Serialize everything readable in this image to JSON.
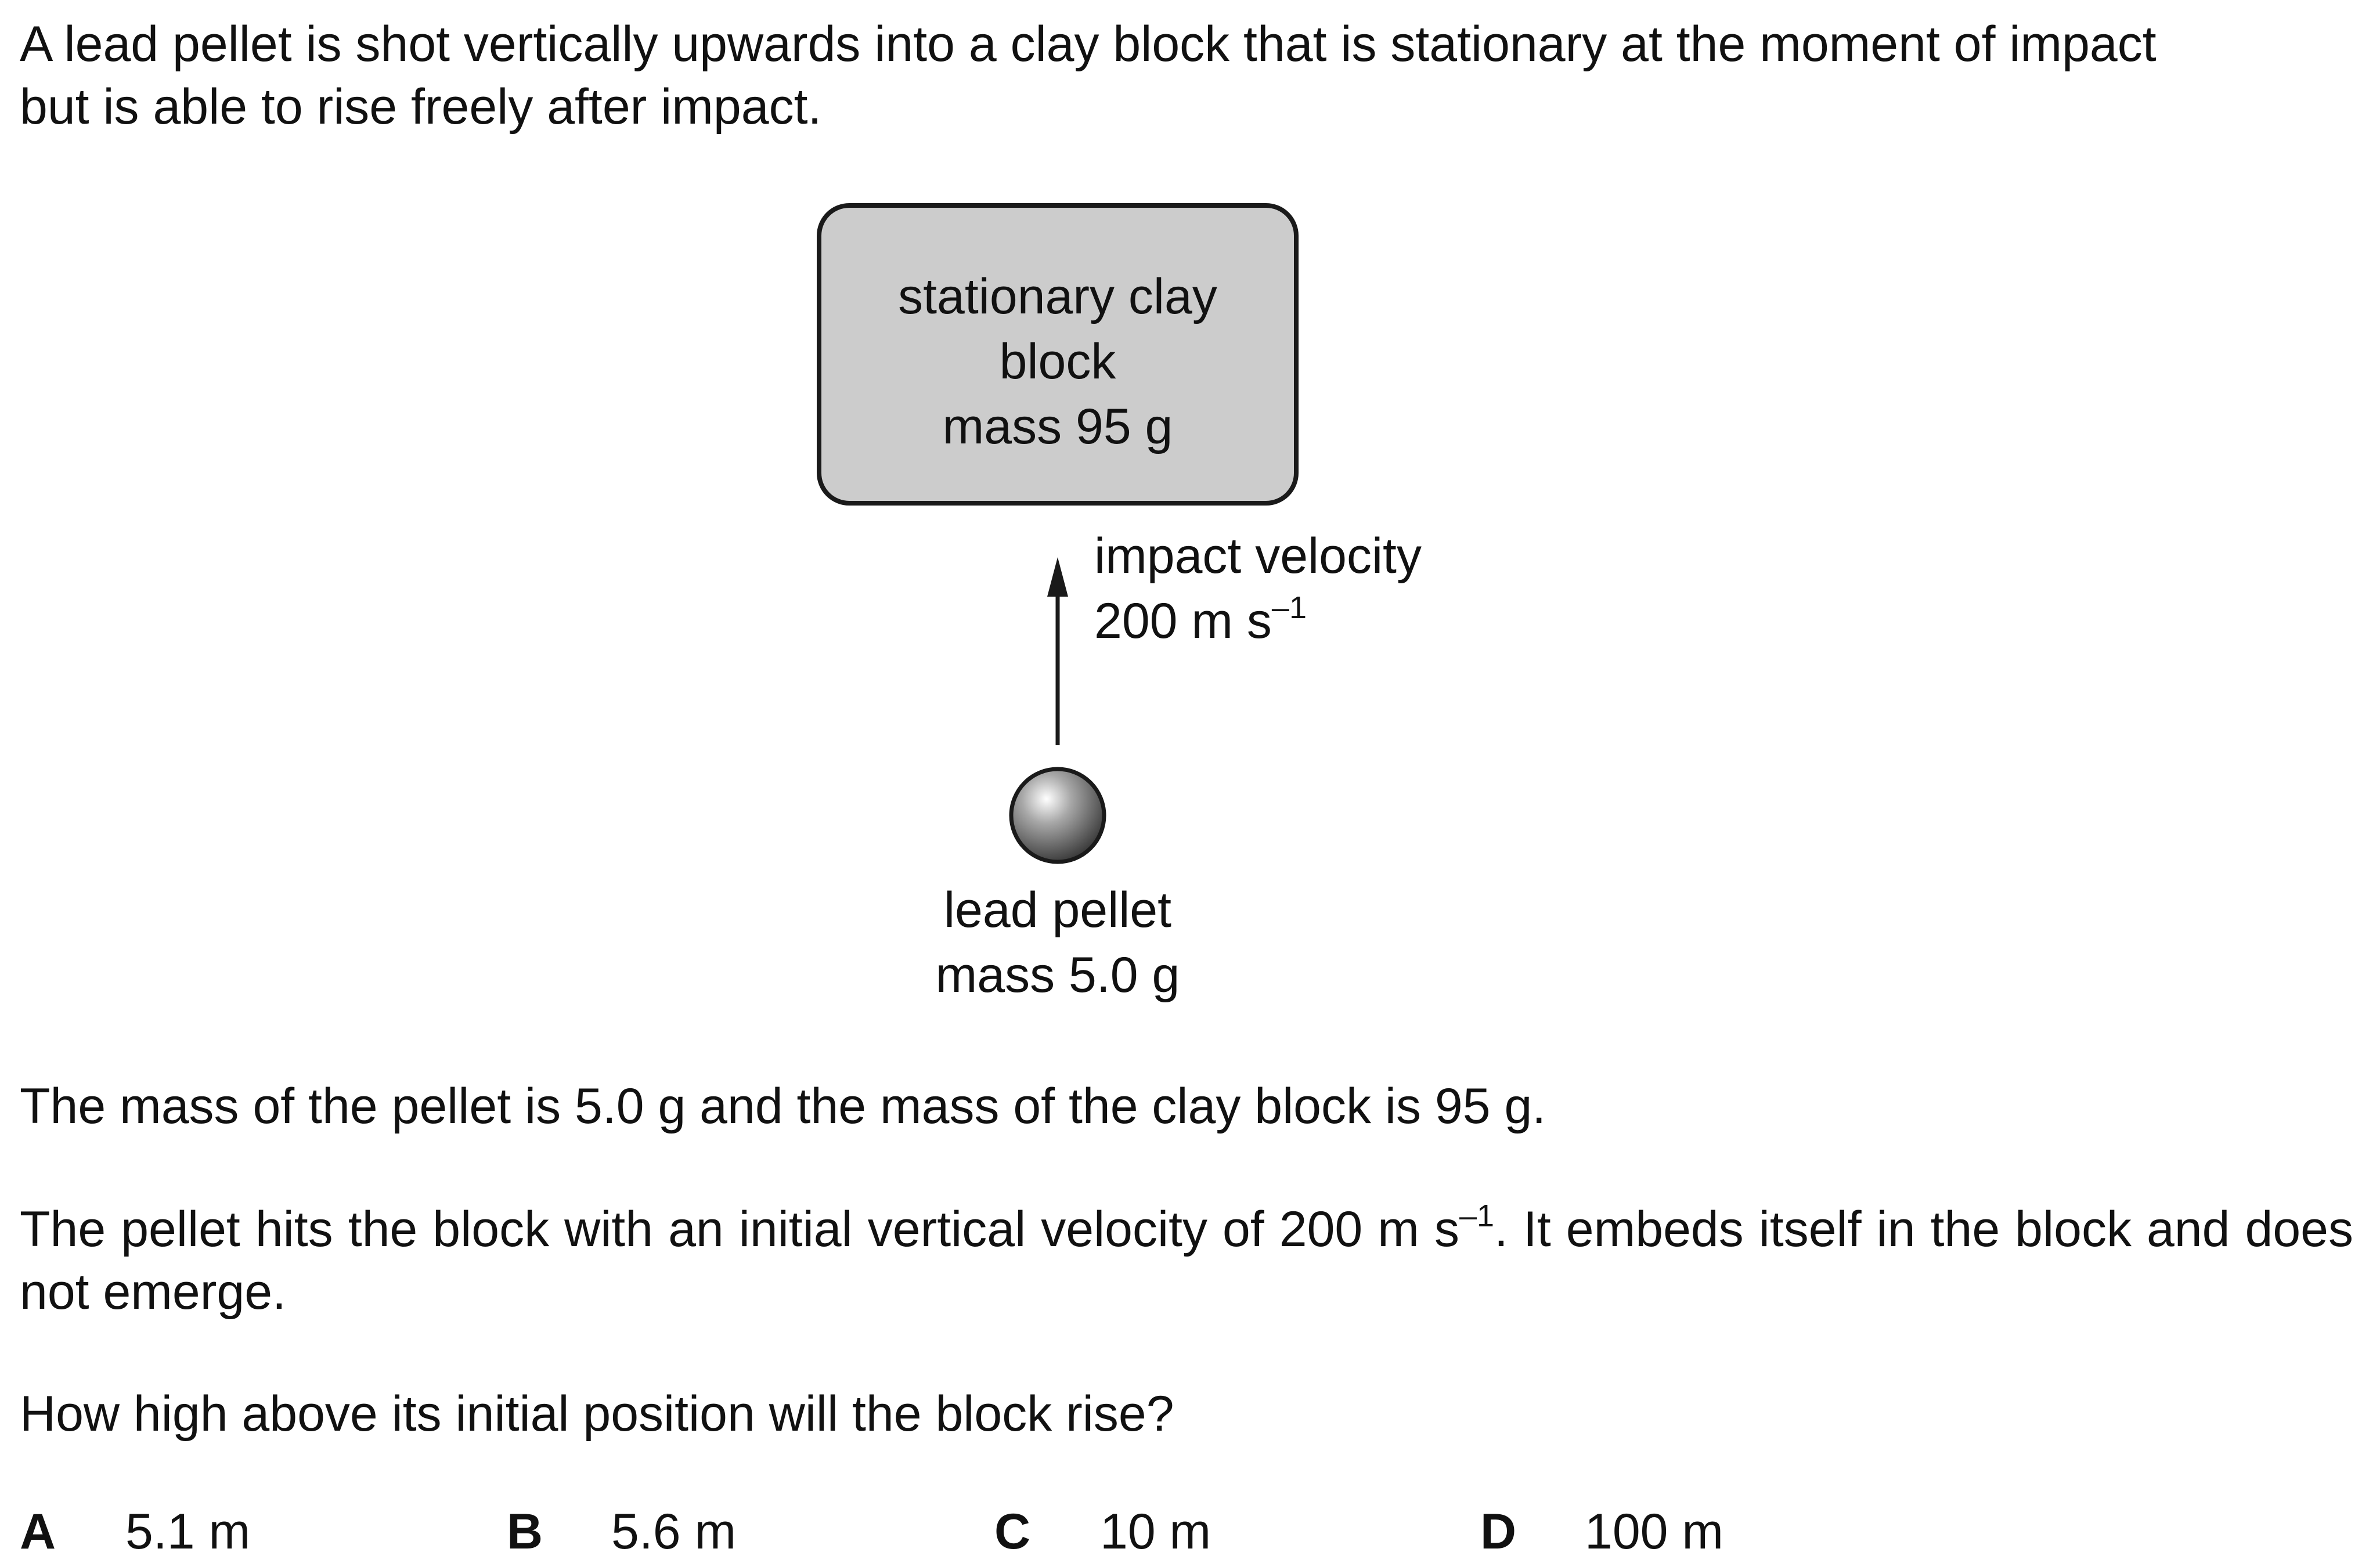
{
  "question": {
    "intro_line1": "A lead pellet is shot vertically upwards into a clay block that is stationary at the moment of impact",
    "intro_line2": "but is able to rise freely after impact.",
    "mass_statement": "The mass of the pellet is 5.0 g and the mass of the clay block is 95 g.",
    "velocity_statement_a": "The pellet hits the block with an initial vertical velocity of 200 m s",
    "velocity_statement_exp": "–1",
    "velocity_statement_b": ". It embeds itself in the block and does not emerge.",
    "prompt": "How high above its initial position will the block rise?"
  },
  "diagram": {
    "block_label_line1": "stationary clay",
    "block_label_line2": "block",
    "block_label_line3": "mass 95 g",
    "velocity_label_line1": "impact velocity",
    "velocity_label_line2": "200 m s",
    "velocity_label_exp": "–1",
    "pellet_label_line1": "lead pellet",
    "pellet_label_line2": "mass 5.0 g",
    "block_fill": "#cccccc"
  },
  "options": [
    {
      "letter": "A",
      "value": "5.1 m"
    },
    {
      "letter": "B",
      "value": "5.6 m"
    },
    {
      "letter": "C",
      "value": "10 m"
    },
    {
      "letter": "D",
      "value": "100 m"
    }
  ]
}
